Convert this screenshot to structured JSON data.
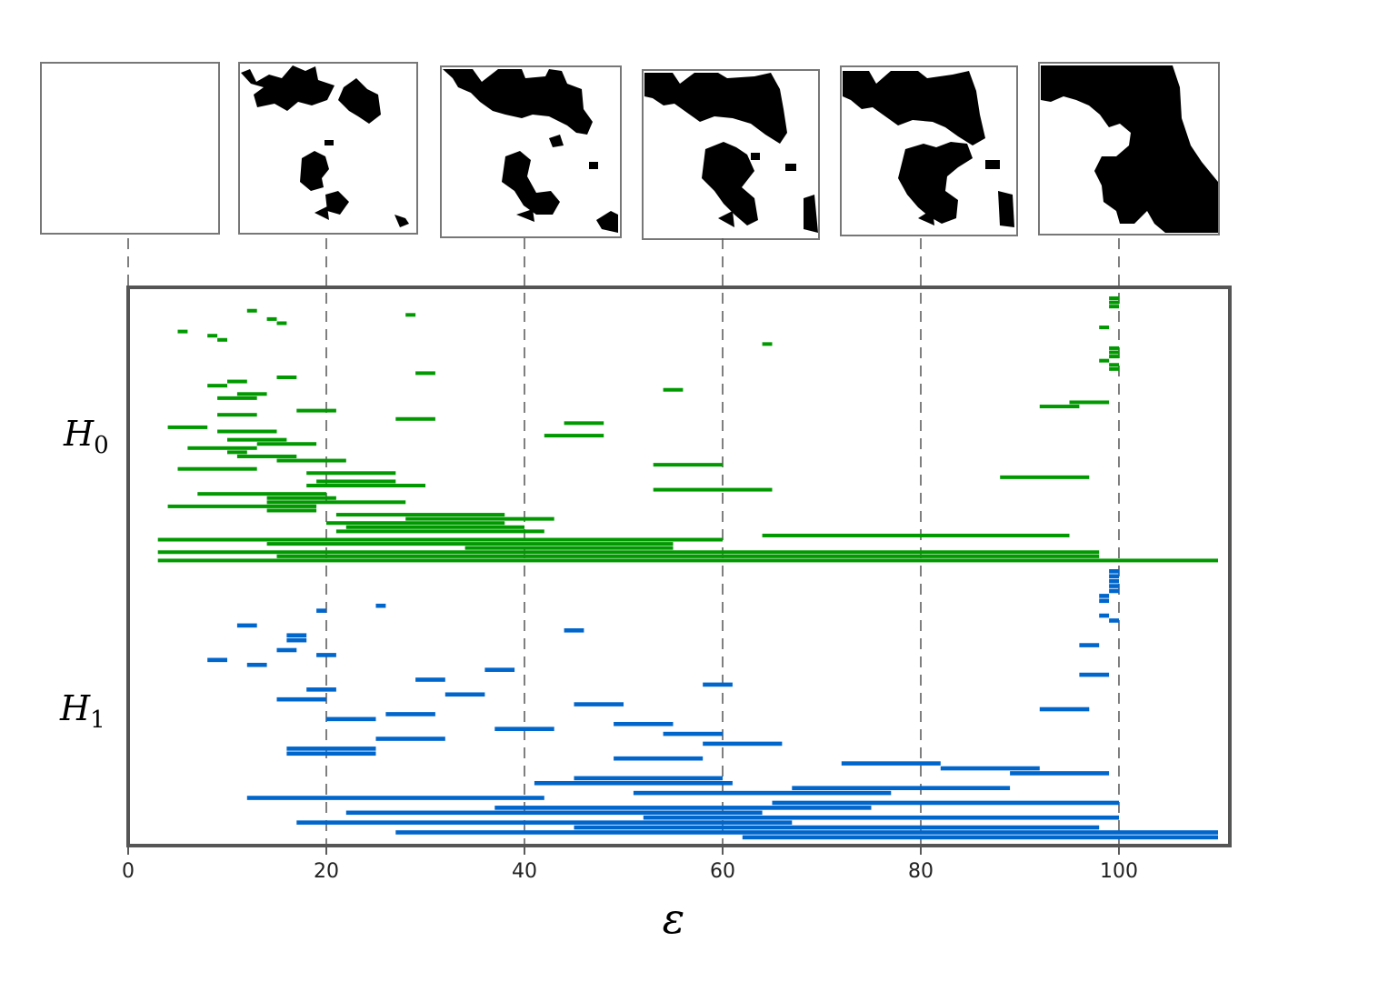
{
  "chart_data": {
    "type": "barcode",
    "xlabel": "ε",
    "xlim": [
      0,
      110
    ],
    "xticks": [
      0,
      20,
      40,
      60,
      80,
      100
    ],
    "xtick_labels": [
      "0",
      "20",
      "40",
      "60",
      "80",
      "100"
    ],
    "grid": "vertical dashed lines at thumbnail thresholds",
    "thumbnail_thresholds": [
      0,
      20,
      40,
      60,
      80,
      100
    ],
    "colors": {
      "H0": "#009900",
      "H1": "#0066cc",
      "frame": "#555555",
      "grid": "#555555"
    },
    "series": [
      {
        "name": "H",
        "subscript": "0",
        "color": "#009900",
        "intervals": [
          [
            99,
            100
          ],
          [
            99,
            100
          ],
          [
            99,
            100
          ],
          [
            12,
            13
          ],
          [
            28,
            29
          ],
          [
            14,
            15
          ],
          [
            15,
            16
          ],
          [
            98,
            99
          ],
          [
            5,
            6
          ],
          [
            8,
            9
          ],
          [
            9,
            10
          ],
          [
            64,
            65
          ],
          [
            99,
            100
          ],
          [
            99,
            100
          ],
          [
            99,
            100
          ],
          [
            98,
            99
          ],
          [
            99,
            100
          ],
          [
            99,
            100
          ],
          [
            29,
            31
          ],
          [
            15,
            17
          ],
          [
            10,
            12
          ],
          [
            8,
            10
          ],
          [
            54,
            56
          ],
          [
            11,
            14
          ],
          [
            9,
            13
          ],
          [
            95,
            99
          ],
          [
            92,
            96
          ],
          [
            17,
            21
          ],
          [
            9,
            13
          ],
          [
            27,
            31
          ],
          [
            44,
            48
          ],
          [
            4,
            8
          ],
          [
            9,
            15
          ],
          [
            42,
            48
          ],
          [
            10,
            16
          ],
          [
            13,
            19
          ],
          [
            6,
            13
          ],
          [
            10,
            12
          ],
          [
            11,
            17
          ],
          [
            15,
            22
          ],
          [
            53,
            60
          ],
          [
            5,
            13
          ],
          [
            18,
            27
          ],
          [
            88,
            97
          ],
          [
            19,
            27
          ],
          [
            18,
            30
          ],
          [
            53,
            65
          ],
          [
            7,
            20
          ],
          [
            14,
            21
          ],
          [
            14,
            28
          ],
          [
            4,
            19
          ],
          [
            14,
            19
          ],
          [
            21,
            38
          ],
          [
            28,
            43
          ],
          [
            20,
            38
          ],
          [
            22,
            40
          ],
          [
            21,
            42
          ],
          [
            64,
            95
          ],
          [
            3,
            60
          ],
          [
            14,
            55
          ],
          [
            34,
            55
          ],
          [
            3,
            98
          ],
          [
            15,
            98
          ],
          [
            3,
            110
          ]
        ]
      },
      {
        "name": "H",
        "subscript": "1",
        "color": "#0066cc",
        "intervals": [
          [
            99,
            100
          ],
          [
            99,
            100
          ],
          [
            99,
            100
          ],
          [
            99,
            100
          ],
          [
            99,
            100
          ],
          [
            98,
            99
          ],
          [
            98,
            99
          ],
          [
            25,
            26
          ],
          [
            19,
            20
          ],
          [
            98,
            99
          ],
          [
            99,
            100
          ],
          [
            11,
            13
          ],
          [
            44,
            46
          ],
          [
            16,
            18
          ],
          [
            16,
            18
          ],
          [
            96,
            98
          ],
          [
            15,
            17
          ],
          [
            19,
            21
          ],
          [
            8,
            10
          ],
          [
            12,
            14
          ],
          [
            36,
            39
          ],
          [
            96,
            99
          ],
          [
            29,
            32
          ],
          [
            58,
            61
          ],
          [
            18,
            21
          ],
          [
            32,
            36
          ],
          [
            15,
            20
          ],
          [
            45,
            50
          ],
          [
            92,
            97
          ],
          [
            26,
            31
          ],
          [
            20,
            25
          ],
          [
            49,
            55
          ],
          [
            37,
            43
          ],
          [
            54,
            60
          ],
          [
            25,
            32
          ],
          [
            58,
            66
          ],
          [
            16,
            25
          ],
          [
            16,
            25
          ],
          [
            49,
            58
          ],
          [
            72,
            82
          ],
          [
            82,
            92
          ],
          [
            89,
            99
          ],
          [
            45,
            60
          ],
          [
            41,
            61
          ],
          [
            67,
            89
          ],
          [
            51,
            77
          ],
          [
            12,
            42
          ],
          [
            65,
            100
          ],
          [
            37,
            75
          ],
          [
            22,
            64
          ],
          [
            52,
            100
          ],
          [
            17,
            67
          ],
          [
            45,
            98
          ],
          [
            27,
            110
          ],
          [
            62,
            110
          ]
        ]
      }
    ]
  }
}
